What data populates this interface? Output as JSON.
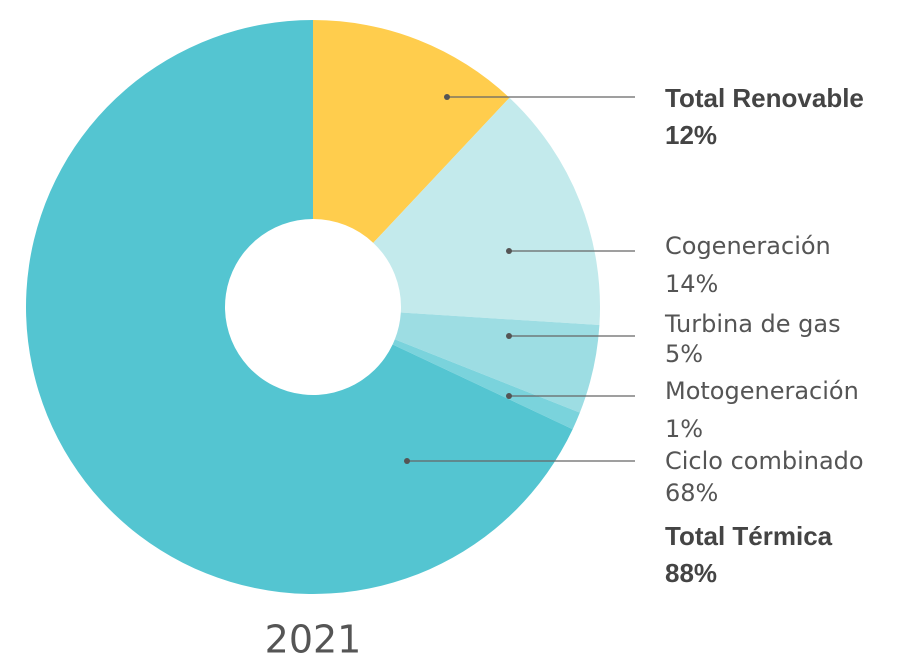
{
  "chart_data": {
    "type": "donut",
    "title": "2021",
    "categories": [
      "Total Renovable",
      "Cogeneración",
      "Turbina de gas",
      "Motogeneración",
      "Ciclo combinado"
    ],
    "values": [
      12,
      14,
      5,
      1,
      68
    ],
    "value_labels": [
      "12%",
      "14%",
      "5%",
      "1%",
      "68%"
    ],
    "colors": [
      "#ffcd4d",
      "#c3eaec",
      "#9ddde3",
      "#7ad3dc",
      "#54c5d1"
    ],
    "annotations": [
      {
        "text": "Total Térmica",
        "label": "88%"
      }
    ]
  }
}
